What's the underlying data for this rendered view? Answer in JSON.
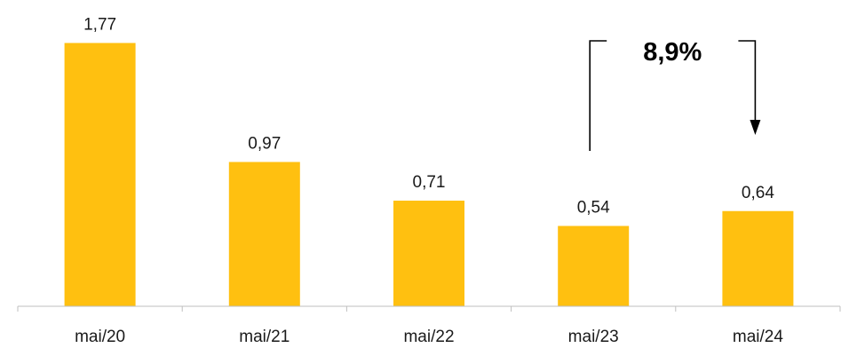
{
  "chart_data": {
    "type": "bar",
    "categories": [
      "mai/20",
      "mai/21",
      "mai/22",
      "mai/23",
      "mai/24"
    ],
    "values": [
      1.77,
      0.97,
      0.71,
      0.54,
      0.64
    ],
    "value_labels": [
      "1,77",
      "0,97",
      "0,71",
      "0,54",
      "0,64"
    ],
    "title": "",
    "xlabel": "",
    "ylabel": "",
    "ylim": [
      0,
      1.85
    ],
    "grid": false,
    "legend": "none",
    "bar_color": "#FFC010",
    "annotation": {
      "text": "8,9%",
      "from_category": "mai/23",
      "to_category": "mai/24",
      "arrow_direction": "down"
    }
  }
}
